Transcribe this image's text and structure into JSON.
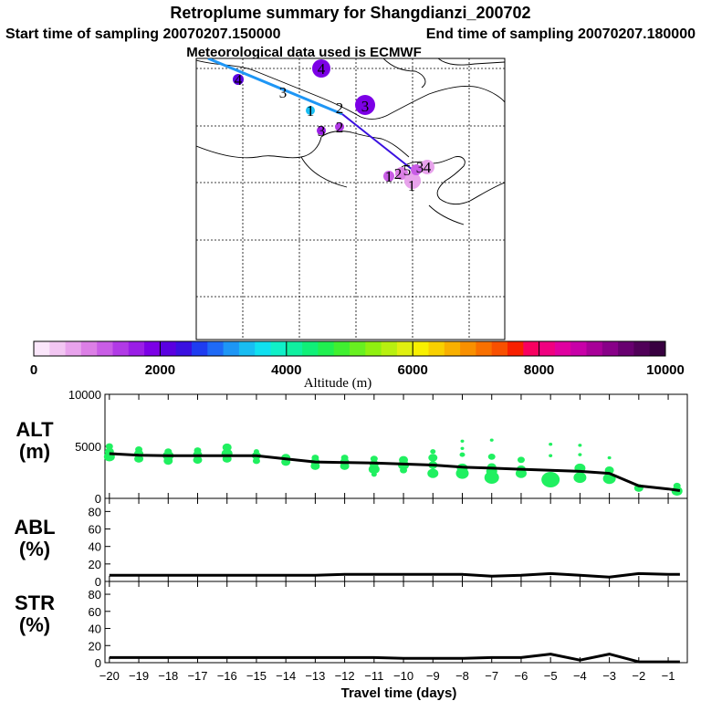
{
  "header": {
    "title": "Retroplume summary for Shangdianzi_200702",
    "start_label": "Start time of sampling 20070207.150000",
    "end_label": "End time of sampling 20070207.180000",
    "met_label": "Meteorological data used is ECMWF"
  },
  "map": {
    "track_labels": [
      "4",
      "3",
      "3",
      "2",
      "1"
    ],
    "cluster_labels": [
      "4",
      "3",
      "2",
      "1",
      "1",
      "2",
      "3",
      "4",
      "5"
    ]
  },
  "colorbar": {
    "title": "Altitude (m)",
    "tick_labels": [
      "0",
      "2000",
      "4000",
      "6000",
      "8000",
      "10000"
    ],
    "colors": [
      "#fae6fa",
      "#f2c6f2",
      "#e8a3ec",
      "#dc7fe6",
      "#c95de6",
      "#b13ae6",
      "#9a1ee6",
      "#7c00e6",
      "#5a00e0",
      "#3a10e0",
      "#1f3cf0",
      "#1f6af5",
      "#1e96f5",
      "#19bdf2",
      "#10e0f0",
      "#10f0c8",
      "#10f0a0",
      "#10f078",
      "#20f050",
      "#40f030",
      "#68f020",
      "#90f010",
      "#b8f010",
      "#e0f010",
      "#f8f000",
      "#f8d000",
      "#f8b000",
      "#f89000",
      "#f87000",
      "#f85000",
      "#f82000",
      "#f80060",
      "#f00080",
      "#e000a0",
      "#c800a8",
      "#a80098",
      "#880088",
      "#680070",
      "#500058",
      "#380040"
    ]
  },
  "panels": {
    "alt": {
      "label_top": "ALT",
      "label_bottom": "(m)"
    },
    "abl": {
      "label_top": "ABL",
      "label_bottom": "(%)"
    },
    "str": {
      "label_top": "STR",
      "label_bottom": "(%)"
    }
  },
  "xaxis": {
    "label": "Travel time (days)",
    "ticks": [
      -20,
      -19,
      -18,
      -17,
      -16,
      -15,
      -14,
      -13,
      -12,
      -11,
      -10,
      -9,
      -8,
      -7,
      -6,
      -5,
      -4,
      -3,
      -2,
      -1
    ]
  },
  "chart_data": [
    {
      "type": "line",
      "title": "ALT (m)",
      "xlabel": "Travel time (days)",
      "ylabel": "ALT (m)",
      "ylim": [
        0,
        10000
      ],
      "yticks": [
        "0",
        "5000",
        "10000"
      ],
      "x": [
        -20,
        -19,
        -18,
        -17,
        -16,
        -15,
        -14,
        -13,
        -12,
        -11,
        -10,
        -9,
        -8,
        -7,
        -6,
        -5,
        -4,
        -3,
        -2,
        -1,
        -0.6
      ],
      "values": [
        4300,
        4150,
        4100,
        4100,
        4100,
        4100,
        3800,
        3500,
        3450,
        3400,
        3300,
        3200,
        3000,
        2900,
        2800,
        2700,
        2600,
        2400,
        1200,
        900,
        750
      ],
      "clusters": [
        {
          "x": -20,
          "alts": [
            4000,
            4500,
            5000
          ],
          "sizes": [
            6,
            5,
            4
          ]
        },
        {
          "x": -19,
          "alts": [
            3800,
            4300,
            4700
          ],
          "sizes": [
            5,
            5,
            4
          ]
        },
        {
          "x": -18,
          "alts": [
            3600,
            4100,
            4500
          ],
          "sizes": [
            5,
            6,
            4
          ]
        },
        {
          "x": -17,
          "alts": [
            3700,
            4200,
            4600
          ],
          "sizes": [
            5,
            5,
            4
          ]
        },
        {
          "x": -16,
          "alts": [
            3800,
            4300,
            4900
          ],
          "sizes": [
            5,
            6,
            5
          ]
        },
        {
          "x": -15,
          "alts": [
            3600,
            4100,
            4500
          ],
          "sizes": [
            4,
            5,
            3
          ]
        },
        {
          "x": -14,
          "alts": [
            3500,
            3900
          ],
          "sizes": [
            5,
            5
          ]
        },
        {
          "x": -13,
          "alts": [
            3100,
            3500,
            3900
          ],
          "sizes": [
            5,
            5,
            4
          ]
        },
        {
          "x": -12,
          "alts": [
            3100,
            3500,
            3900
          ],
          "sizes": [
            5,
            5,
            4
          ]
        },
        {
          "x": -11,
          "alts": [
            2300,
            2800,
            3300,
            3800
          ],
          "sizes": [
            3,
            6,
            5,
            4
          ]
        },
        {
          "x": -10,
          "alts": [
            2700,
            3200,
            3700
          ],
          "sizes": [
            4,
            6,
            5
          ]
        },
        {
          "x": -9,
          "alts": [
            2400,
            3200,
            3900,
            4500
          ],
          "sizes": [
            6,
            5,
            5,
            3
          ]
        },
        {
          "x": -8,
          "alts": [
            2400,
            2900,
            4200,
            4800,
            5500
          ],
          "sizes": [
            7,
            6,
            3,
            2,
            2
          ]
        },
        {
          "x": -7,
          "alts": [
            2000,
            2600,
            3000,
            4000,
            5600
          ],
          "sizes": [
            8,
            6,
            5,
            4,
            2
          ]
        },
        {
          "x": -6,
          "alts": [
            2400,
            2800,
            3700
          ],
          "sizes": [
            6,
            5,
            4
          ]
        },
        {
          "x": -5,
          "alts": [
            1800,
            4100,
            5200
          ],
          "sizes": [
            10,
            2,
            2
          ]
        },
        {
          "x": -4,
          "alts": [
            2000,
            2900,
            4200,
            5100
          ],
          "sizes": [
            7,
            6,
            2,
            2
          ]
        },
        {
          "x": -3,
          "alts": [
            1900,
            2700,
            3900
          ],
          "sizes": [
            7,
            5,
            2
          ]
        },
        {
          "x": -2,
          "alts": [
            1000
          ],
          "sizes": [
            5
          ]
        },
        {
          "x": -0.7,
          "alts": [
            700,
            1200
          ],
          "sizes": [
            6,
            4
          ]
        }
      ]
    },
    {
      "type": "line",
      "title": "ABL (%)",
      "xlabel": "Travel time (days)",
      "ylabel": "ABL (%)",
      "ylim": [
        0,
        95
      ],
      "yticks": [
        "0",
        "20",
        "40",
        "60",
        "80"
      ],
      "x": [
        -20,
        -19,
        -18,
        -17,
        -16,
        -15,
        -14,
        -13,
        -12,
        -11,
        -10,
        -9,
        -8,
        -7,
        -6,
        -5,
        -4,
        -3,
        -2,
        -1,
        -0.6
      ],
      "values": [
        7,
        7,
        7,
        7,
        7,
        7,
        7,
        7,
        8,
        8,
        8,
        8,
        8,
        6,
        7,
        9,
        7,
        5,
        9,
        8,
        8
      ]
    },
    {
      "type": "line",
      "title": "STR (%)",
      "xlabel": "Travel time (days)",
      "ylabel": "STR (%)",
      "ylim": [
        0,
        95
      ],
      "yticks": [
        "0",
        "20",
        "40",
        "60",
        "80"
      ],
      "x": [
        -20,
        -19,
        -18,
        -17,
        -16,
        -15,
        -14,
        -13,
        -12,
        -11,
        -10,
        -9,
        -8,
        -7,
        -6,
        -5,
        -4,
        -3,
        -2,
        -1,
        -0.6
      ],
      "values": [
        6,
        6,
        6,
        6,
        6,
        6,
        6,
        6,
        6,
        6,
        5,
        5,
        5,
        6,
        6,
        10,
        3,
        10,
        1,
        1,
        1
      ]
    }
  ]
}
